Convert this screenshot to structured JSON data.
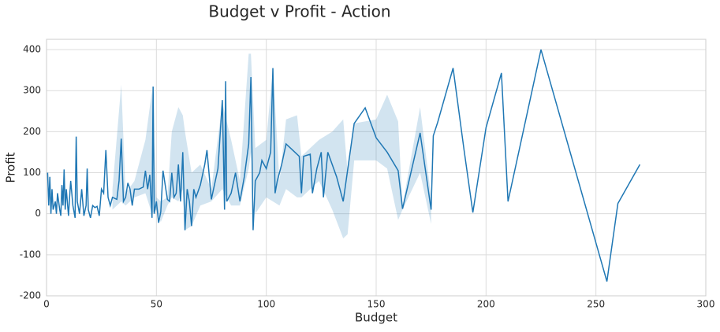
{
  "chart_data": {
    "type": "line",
    "title": "Budget v Profit - Action",
    "xlabel": "Budget",
    "ylabel": "Profit",
    "color": "#1f77b4",
    "grid": true,
    "xlim": [
      0,
      300
    ],
    "ylim": [
      -200,
      425
    ],
    "xticks": [
      0,
      50,
      100,
      150,
      200,
      250,
      300
    ],
    "yticks": [
      -200,
      -100,
      0,
      100,
      200,
      300,
      400
    ],
    "x": [
      0.5,
      1,
      1.5,
      2,
      2.5,
      3,
      4,
      4.5,
      5,
      6,
      6.5,
      7,
      7.5,
      8,
      8.5,
      9,
      10,
      10.5,
      11,
      12,
      13,
      13.5,
      14,
      15,
      16,
      17,
      18,
      18.5,
      19,
      20,
      21,
      22,
      23,
      24,
      25,
      26,
      27,
      28,
      29,
      30,
      32,
      33,
      34,
      35,
      36,
      37,
      38,
      39,
      40,
      42,
      44,
      45,
      46,
      47,
      48,
      48.5,
      49,
      50,
      51,
      52,
      53,
      55,
      56,
      57,
      58,
      59,
      60,
      61,
      62,
      63,
      64,
      65,
      66,
      67,
      68,
      70,
      72,
      73,
      75,
      78,
      80,
      81,
      81.5,
      82,
      84,
      86,
      88,
      90,
      92,
      93,
      94,
      95,
      97,
      98,
      100,
      102,
      103,
      104,
      105,
      107,
      109,
      112,
      115,
      116,
      117,
      120,
      121,
      123,
      125,
      126,
      128,
      132,
      135,
      140,
      145,
      150,
      155,
      160,
      162,
      170,
      175,
      176,
      178,
      185,
      190,
      194,
      200,
      207,
      210,
      225,
      255,
      260,
      270
    ],
    "values": [
      100,
      20,
      90,
      0,
      60,
      10,
      30,
      0,
      50,
      10,
      -5,
      70,
      20,
      108,
      10,
      60,
      -5,
      40,
      80,
      20,
      -10,
      188,
      30,
      0,
      60,
      -5,
      20,
      110,
      10,
      -10,
      20,
      15,
      18,
      -5,
      60,
      50,
      155,
      40,
      20,
      40,
      35,
      80,
      183,
      30,
      40,
      75,
      60,
      20,
      60,
      60,
      65,
      105,
      60,
      95,
      -10,
      310,
      0,
      30,
      -22,
      5,
      105,
      35,
      30,
      100,
      40,
      50,
      120,
      30,
      150,
      -40,
      60,
      30,
      -30,
      60,
      40,
      70,
      120,
      155,
      35,
      110,
      277,
      10,
      323,
      30,
      50,
      100,
      30,
      90,
      170,
      333,
      -40,
      80,
      100,
      130,
      110,
      150,
      355,
      50,
      80,
      120,
      170,
      155,
      140,
      50,
      140,
      145,
      50,
      110,
      150,
      40,
      150,
      90,
      30,
      220,
      258,
      185,
      150,
      105,
      12,
      197,
      10,
      190,
      223,
      355,
      155,
      3,
      210,
      343,
      30,
      400,
      -165,
      25,
      120
    ],
    "band": {
      "x": [
        30,
        34,
        36,
        40,
        45,
        48,
        50,
        52,
        55,
        57,
        60,
        62,
        63,
        66,
        70,
        75,
        80,
        84,
        88,
        92,
        93,
        95,
        100,
        103,
        106,
        109,
        114,
        116,
        124,
        130,
        135,
        137,
        140,
        150,
        155,
        160,
        162,
        170,
        175
      ],
      "lower": [
        10,
        30,
        20,
        40,
        50,
        0,
        10,
        -20,
        20,
        40,
        30,
        60,
        -40,
        -30,
        20,
        30,
        60,
        20,
        20,
        110,
        150,
        0,
        40,
        30,
        20,
        60,
        40,
        40,
        80,
        10,
        -60,
        -50,
        130,
        130,
        110,
        -15,
        10,
        100,
        -25
      ],
      "upper": [
        60,
        315,
        50,
        80,
        180,
        300,
        40,
        30,
        40,
        200,
        260,
        240,
        200,
        100,
        120,
        60,
        270,
        180,
        80,
        390,
        390,
        160,
        180,
        355,
        80,
        230,
        240,
        140,
        180,
        200,
        230,
        100,
        220,
        230,
        290,
        225,
        20,
        260,
        40
      ]
    }
  }
}
